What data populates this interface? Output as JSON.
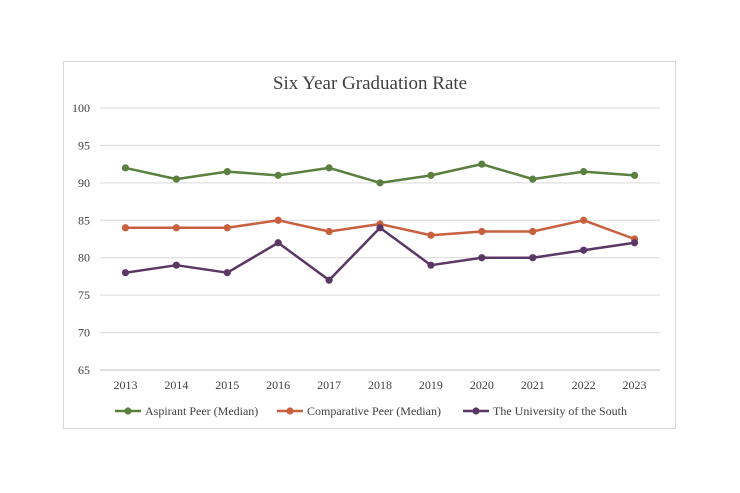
{
  "chart_data": {
    "type": "line",
    "title": "Six Year Graduation Rate",
    "xlabel": "",
    "ylabel": "",
    "ylim": [
      65,
      100
    ],
    "y_ticks": [
      65,
      70,
      75,
      80,
      85,
      90,
      95,
      100
    ],
    "categories": [
      "2013",
      "2014",
      "2015",
      "2016",
      "2017",
      "2018",
      "2019",
      "2020",
      "2021",
      "2022",
      "2023"
    ],
    "grid": "horizontal",
    "legend_position": "bottom",
    "series": [
      {
        "name": "Aspirant Peer (Median)",
        "color": "#5b7f3e",
        "values": [
          92,
          90.5,
          91.5,
          91,
          92,
          90,
          91,
          92.5,
          90.5,
          91.5,
          91
        ]
      },
      {
        "name": "Comparative Peer (Median)",
        "color": "#c8603f",
        "values": [
          84,
          84,
          84,
          85,
          83.5,
          84.5,
          83,
          83.5,
          83.5,
          85,
          82.5
        ]
      },
      {
        "name": "The University of the South",
        "color": "#5b3766",
        "values": [
          78,
          79,
          78,
          82,
          77,
          84,
          79,
          80,
          80,
          81,
          82
        ]
      }
    ]
  }
}
